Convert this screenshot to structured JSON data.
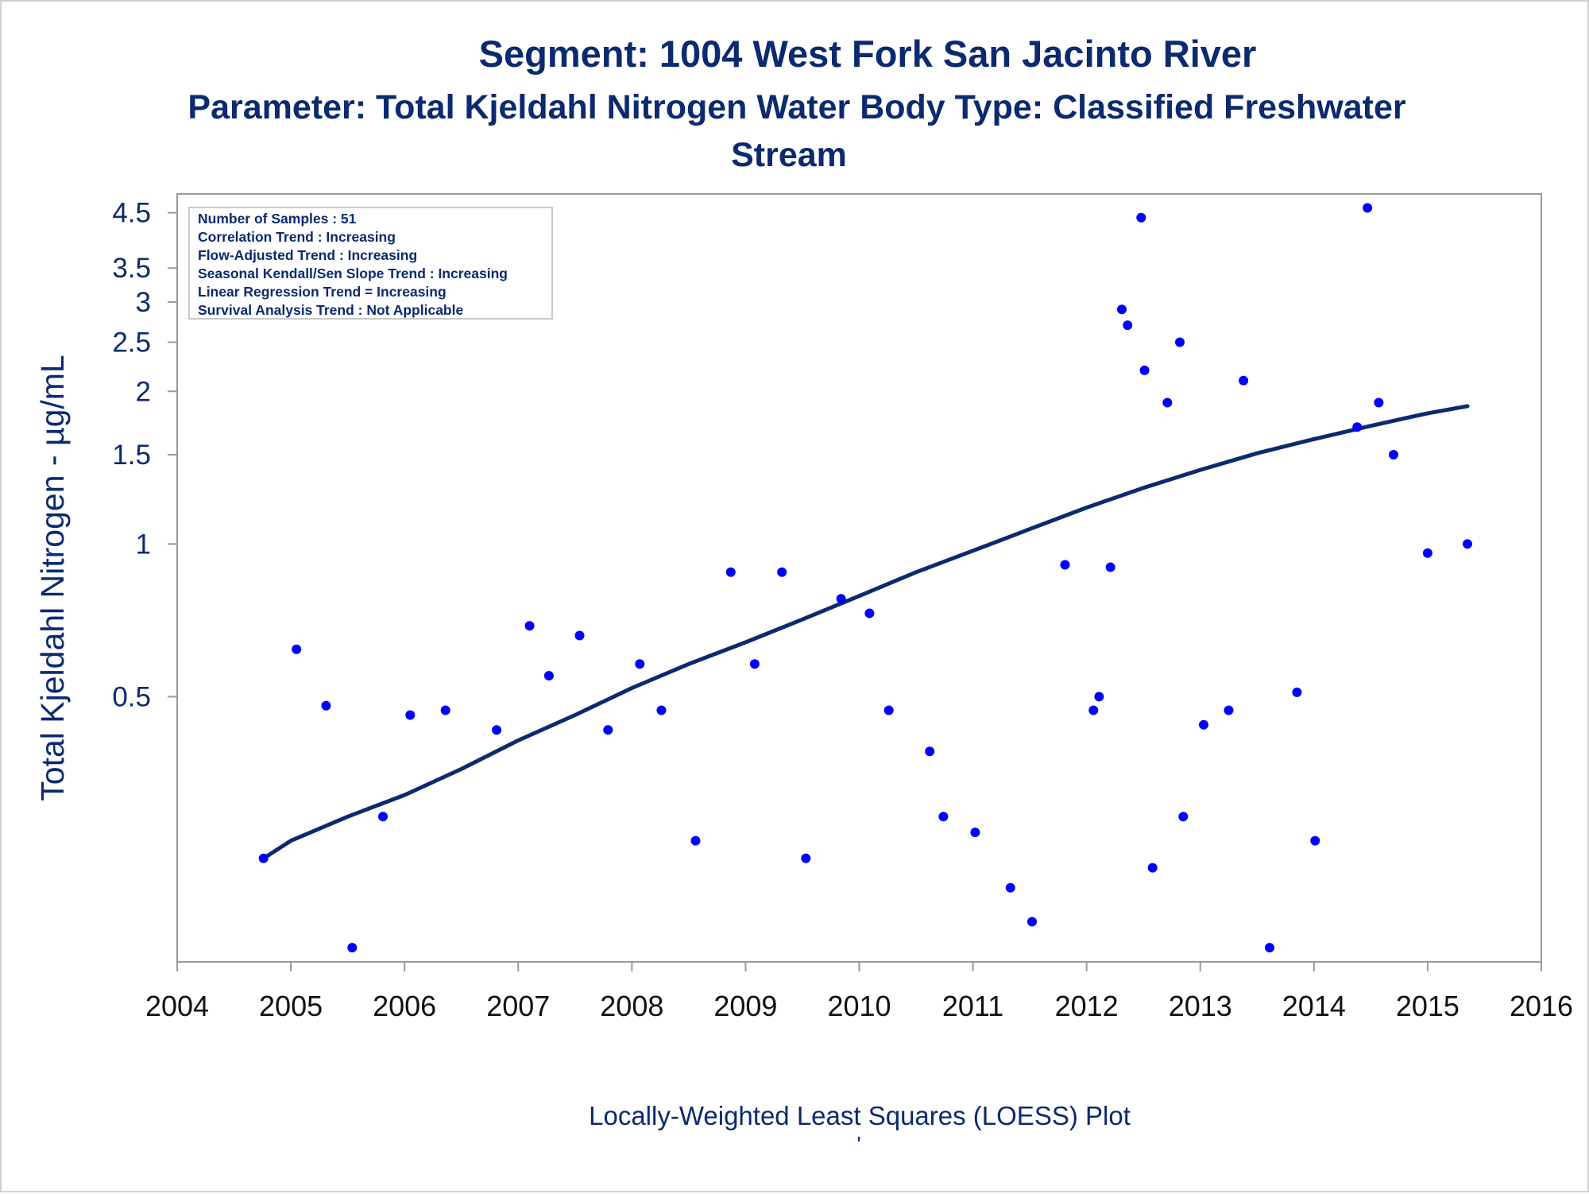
{
  "chart_data": {
    "type": "scatter",
    "title": "Segment: 1004  West Fork San Jacinto River",
    "subtitle_lines": [
      "Parameter: Total Kjeldahl Nitrogen   Water Body Type: Classified Freshwater",
      "Stream"
    ],
    "ylabel": "Total Kjeldahl Nitrogen -  µg/mL",
    "xlabel": "Locally-Weighted Least Squares (LOESS) Plot",
    "footnote": "'",
    "y_scale": "log",
    "xlim": [
      2004.0,
      2016.0
    ],
    "ylim": [
      0.15,
      4.9
    ],
    "x_ticks": [
      2004,
      2005,
      2006,
      2007,
      2008,
      2009,
      2010,
      2011,
      2012,
      2013,
      2014,
      2015,
      2016
    ],
    "y_ticks": [
      0.5,
      1,
      1.5,
      2,
      2.5,
      3,
      3.5,
      4.5
    ],
    "y_tick_labels": [
      "0.5",
      "1",
      "1.5",
      "2",
      "2.5",
      "3",
      "3.5",
      "4.5"
    ],
    "grid": false,
    "colors": {
      "points": "#0000ff",
      "loess": "#0b2a6f",
      "text": "#0b2a6f",
      "frame": "#9a9a9a"
    },
    "info_box": [
      "Number of Samples : 51",
      "Correlation Trend : Increasing",
      "Flow-Adjusted Trend : Increasing",
      "Seasonal Kendall/Sen Slope Trend : Increasing",
      "Linear Regression Trend = Increasing",
      "Survival Analysis Trend : Not Applicable"
    ],
    "series": [
      {
        "type": "scatter",
        "points": [
          [
            2004.76,
            0.24
          ],
          [
            2005.05,
            0.62
          ],
          [
            2005.31,
            0.48
          ],
          [
            2005.54,
            0.16
          ],
          [
            2005.81,
            0.29
          ],
          [
            2006.05,
            0.46
          ],
          [
            2006.36,
            0.47
          ],
          [
            2006.81,
            0.43
          ],
          [
            2007.1,
            0.69
          ],
          [
            2007.27,
            0.55
          ],
          [
            2007.54,
            0.66
          ],
          [
            2007.79,
            0.43
          ],
          [
            2008.07,
            0.58
          ],
          [
            2008.26,
            0.47
          ],
          [
            2008.56,
            0.26
          ],
          [
            2008.87,
            0.88
          ],
          [
            2009.08,
            0.58
          ],
          [
            2009.32,
            0.88
          ],
          [
            2009.53,
            0.24
          ],
          [
            2009.84,
            0.78
          ],
          [
            2010.09,
            0.73
          ],
          [
            2010.26,
            0.47
          ],
          [
            2010.62,
            0.39
          ],
          [
            2010.74,
            0.29
          ],
          [
            2011.02,
            0.27
          ],
          [
            2011.33,
            0.21
          ],
          [
            2011.52,
            0.18
          ],
          [
            2011.81,
            0.91
          ],
          [
            2012.06,
            0.47
          ],
          [
            2012.11,
            0.5
          ],
          [
            2012.21,
            0.9
          ],
          [
            2012.31,
            2.9
          ],
          [
            2012.36,
            2.7
          ],
          [
            2012.48,
            4.4
          ],
          [
            2012.51,
            2.2
          ],
          [
            2012.58,
            0.23
          ],
          [
            2012.71,
            1.9
          ],
          [
            2012.82,
            2.5
          ],
          [
            2012.85,
            0.29
          ],
          [
            2013.03,
            0.44
          ],
          [
            2013.25,
            0.47
          ],
          [
            2013.38,
            2.1
          ],
          [
            2013.61,
            0.16
          ],
          [
            2013.85,
            0.51
          ],
          [
            2014.01,
            0.26
          ],
          [
            2014.38,
            1.7
          ],
          [
            2014.47,
            4.6
          ],
          [
            2014.57,
            1.9
          ],
          [
            2014.7,
            1.5
          ],
          [
            2015.0,
            0.96
          ],
          [
            2015.35,
            1.0
          ]
        ]
      },
      {
        "type": "line",
        "name": "",
        "points": [
          [
            2004.76,
            0.24
          ],
          [
            2005.0,
            0.26
          ],
          [
            2005.5,
            0.29
          ],
          [
            2006.0,
            0.32
          ],
          [
            2006.5,
            0.36
          ],
          [
            2007.0,
            0.41
          ],
          [
            2007.5,
            0.46
          ],
          [
            2008.0,
            0.52
          ],
          [
            2008.5,
            0.58
          ],
          [
            2009.0,
            0.64
          ],
          [
            2009.5,
            0.71
          ],
          [
            2010.0,
            0.79
          ],
          [
            2010.5,
            0.88
          ],
          [
            2011.0,
            0.97
          ],
          [
            2011.5,
            1.07
          ],
          [
            2012.0,
            1.18
          ],
          [
            2012.5,
            1.29
          ],
          [
            2013.0,
            1.4
          ],
          [
            2013.5,
            1.51
          ],
          [
            2014.0,
            1.61
          ],
          [
            2014.5,
            1.71
          ],
          [
            2015.0,
            1.81
          ],
          [
            2015.35,
            1.87
          ]
        ]
      }
    ]
  }
}
